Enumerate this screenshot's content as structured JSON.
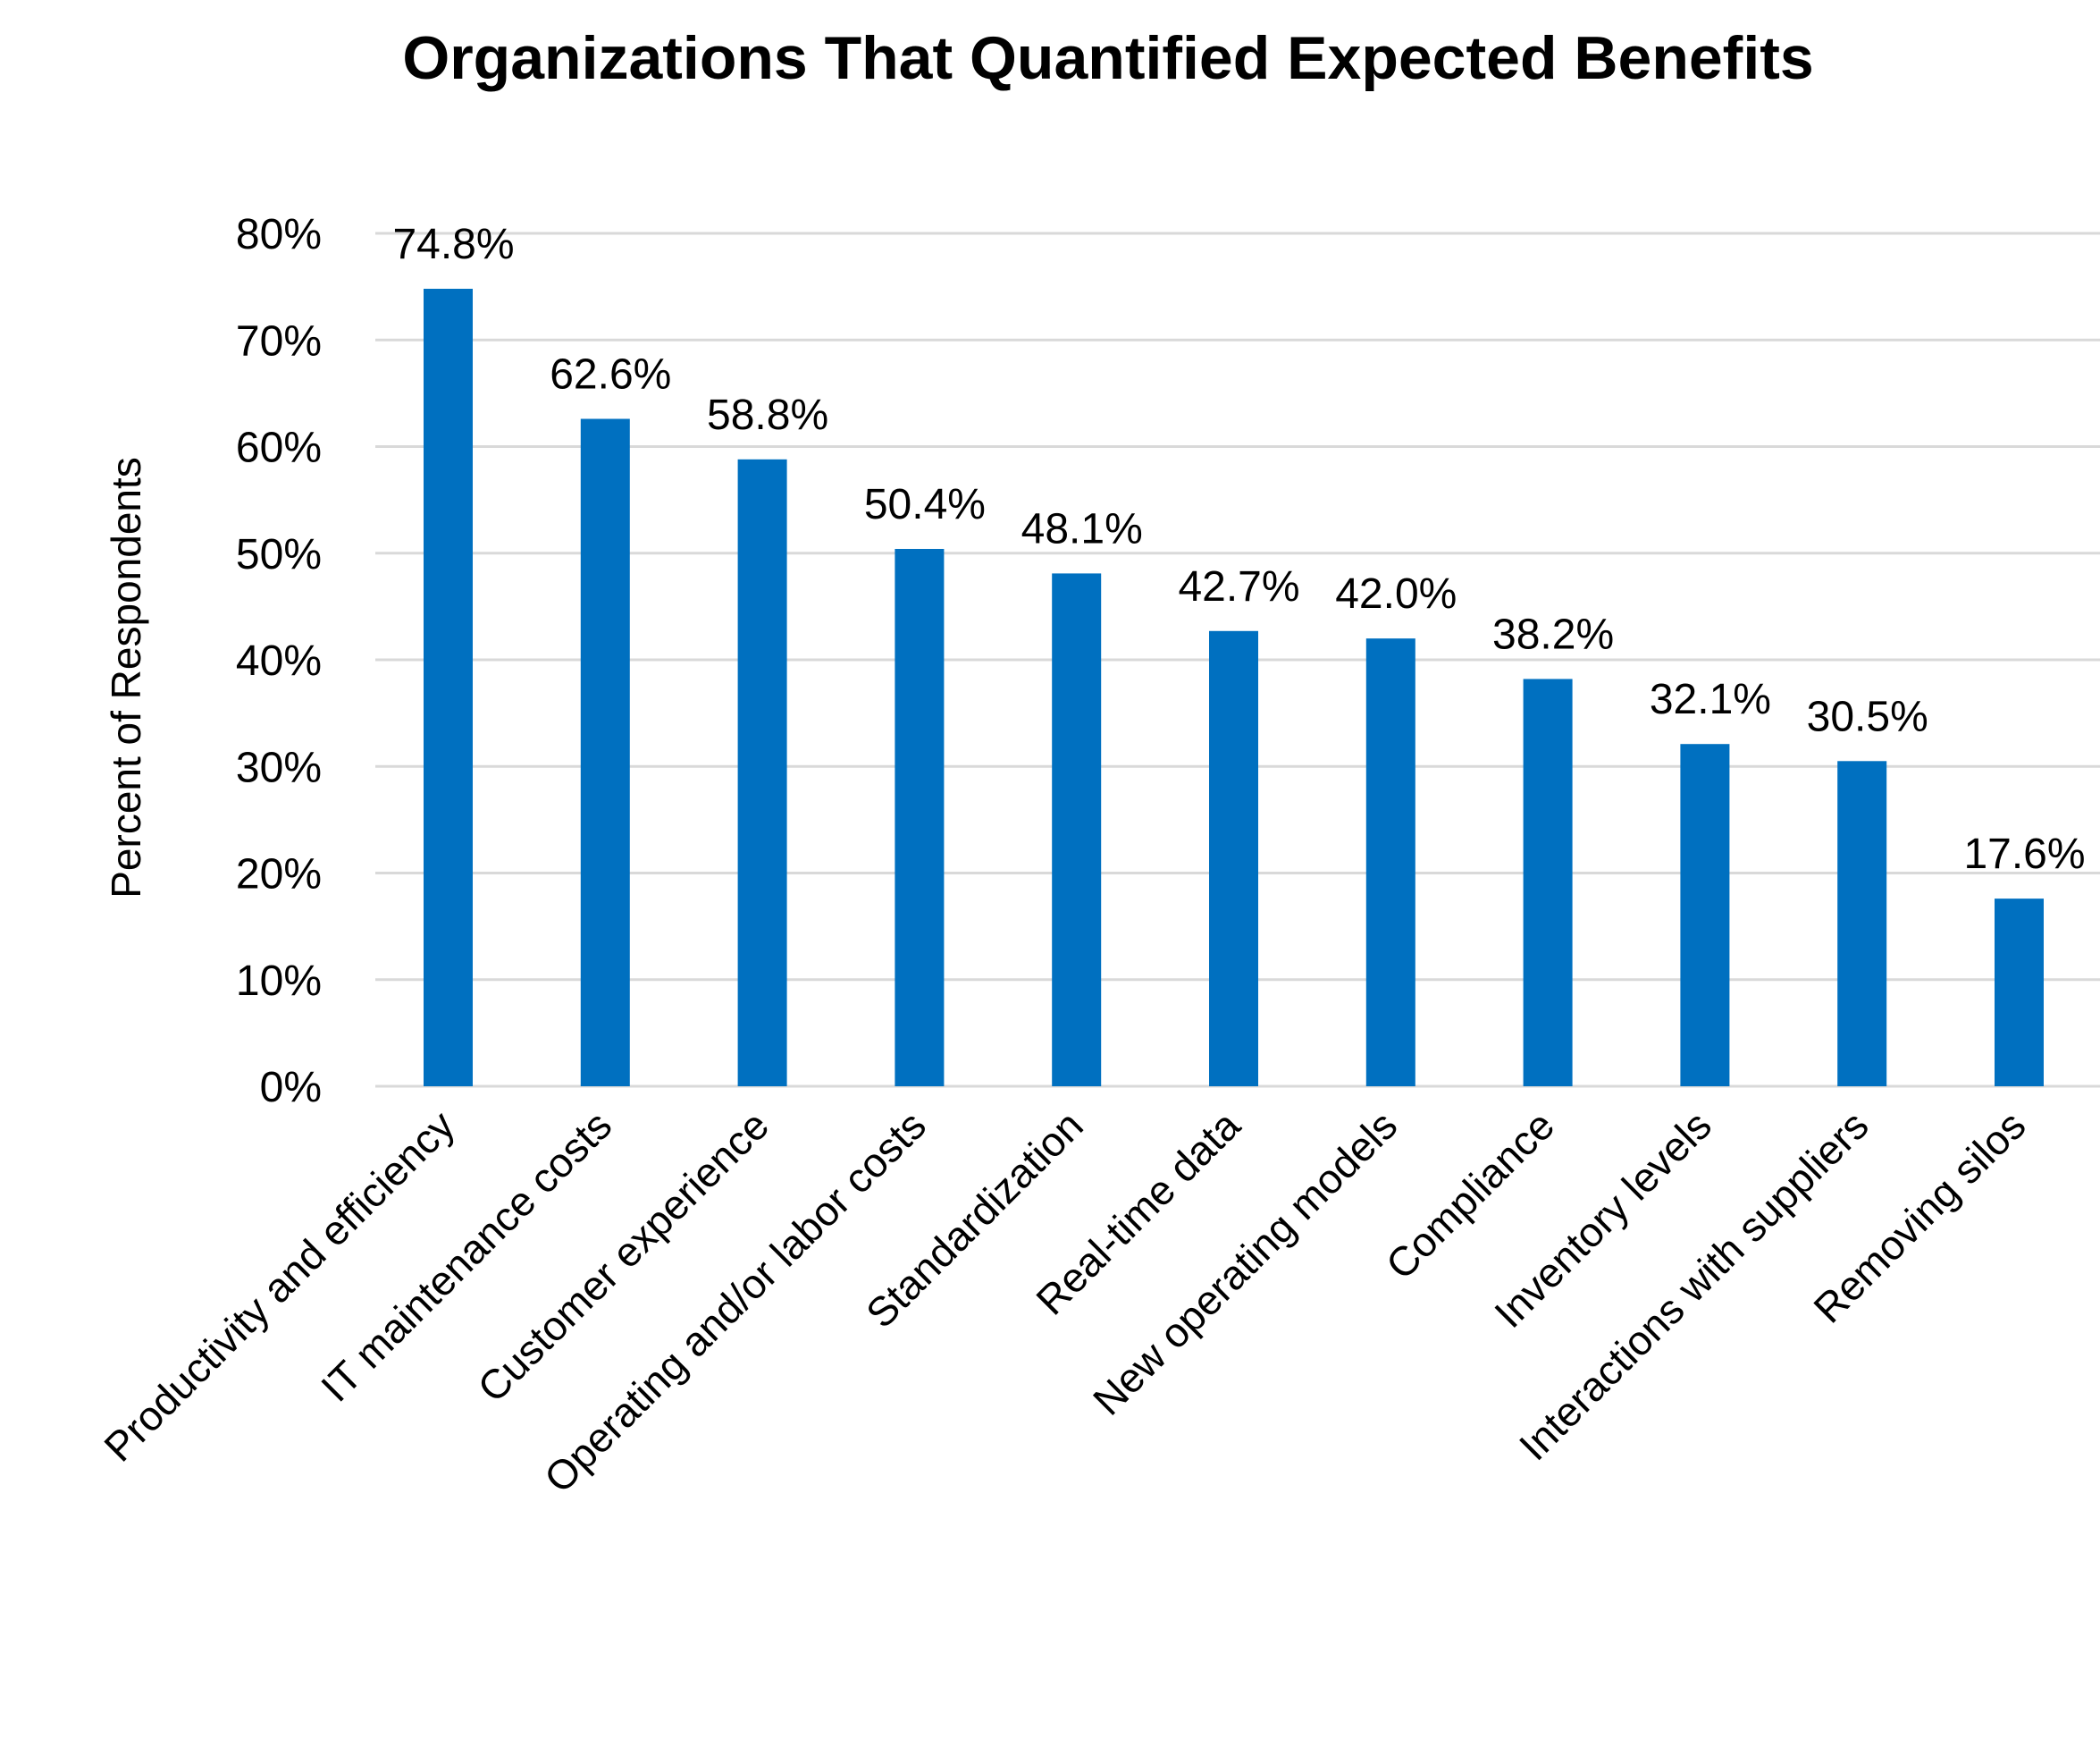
{
  "chart_data": {
    "type": "bar",
    "title": "Organizations That Quantified Expected Benefits",
    "xlabel": "",
    "ylabel": "Percent of Respondents",
    "ylim": [
      0,
      80
    ],
    "y_ticks": [
      "0%",
      "10%",
      "20%",
      "30%",
      "40%",
      "50%",
      "60%",
      "70%",
      "80%"
    ],
    "y_tick_values": [
      0,
      10,
      20,
      30,
      40,
      50,
      60,
      70,
      80
    ],
    "grid": true,
    "legend": "none",
    "bar_color": "#0070C0",
    "categories": [
      "Productivity and efficiency",
      "IT maintenance costs",
      "Customer experience",
      "Operating and/or labor costs",
      "Standardization",
      "Real-time data",
      "New operating models",
      "Compliance",
      "Inventory levels",
      "Interactions with suppliers",
      "Removing silos"
    ],
    "values": [
      74.8,
      62.6,
      58.8,
      50.4,
      48.1,
      42.7,
      42.0,
      38.2,
      32.1,
      30.5,
      17.6
    ],
    "data_labels": [
      "74.8%",
      "62.6%",
      "58.8%",
      "50.4%",
      "48.1%",
      "42.7%",
      "42.0%",
      "38.2%",
      "32.1%",
      "30.5%",
      "17.6%"
    ]
  }
}
